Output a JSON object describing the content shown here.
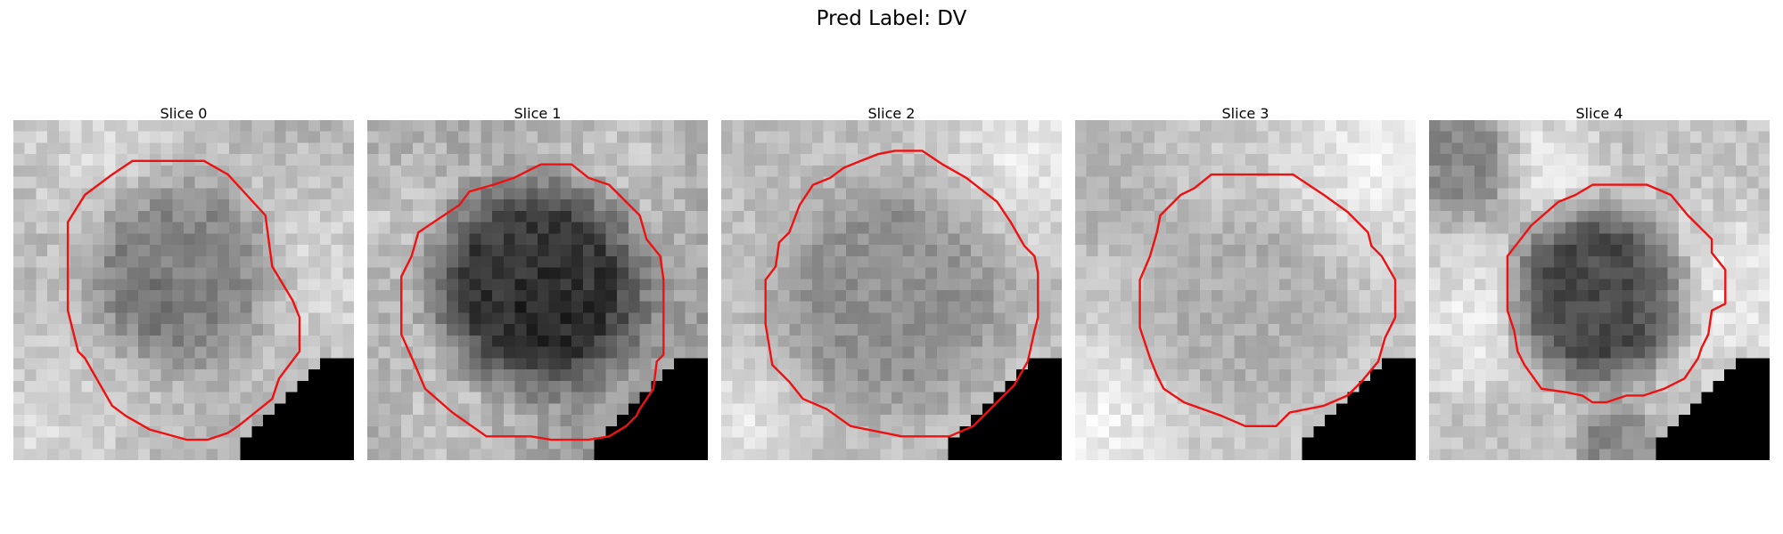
{
  "figure": {
    "title": "Pred Label: DV",
    "contour_color": "#ee1111"
  },
  "slices": [
    {
      "title": "Slice 0",
      "seed": 11,
      "base": 175,
      "contrast": 20,
      "bright_regions": [
        [
          0.25,
          0.05,
          0.5
        ],
        [
          0.05,
          0.95,
          0.6
        ],
        [
          0.9,
          0.45,
          0.5
        ]
      ],
      "dark_regions": [
        [
          0.5,
          0.45,
          0.35,
          60
        ]
      ],
      "contour": [
        [
          0.29,
          0.16
        ],
        [
          0.35,
          0.12
        ],
        [
          0.56,
          0.12
        ],
        [
          0.63,
          0.16
        ],
        [
          0.74,
          0.28
        ],
        [
          0.76,
          0.43
        ],
        [
          0.82,
          0.53
        ],
        [
          0.84,
          0.58
        ],
        [
          0.84,
          0.68
        ],
        [
          0.78,
          0.76
        ],
        [
          0.76,
          0.82
        ],
        [
          0.66,
          0.9
        ],
        [
          0.63,
          0.92
        ],
        [
          0.57,
          0.94
        ],
        [
          0.51,
          0.94
        ],
        [
          0.4,
          0.91
        ],
        [
          0.33,
          0.87
        ],
        [
          0.29,
          0.84
        ],
        [
          0.21,
          0.7
        ],
        [
          0.19,
          0.68
        ],
        [
          0.16,
          0.56
        ],
        [
          0.16,
          0.3
        ],
        [
          0.21,
          0.22
        ]
      ]
    },
    {
      "title": "Slice 1",
      "seed": 23,
      "base": 155,
      "contrast": 22,
      "bright_regions": [
        [
          0.05,
          0.3,
          0.5
        ],
        [
          0.2,
          0.9,
          0.4
        ],
        [
          0.75,
          0.1,
          0.5
        ]
      ],
      "dark_regions": [
        [
          0.5,
          0.48,
          0.38,
          115
        ]
      ],
      "contour": [
        [
          0.27,
          0.25
        ],
        [
          0.3,
          0.21
        ],
        [
          0.37,
          0.19
        ],
        [
          0.43,
          0.17
        ],
        [
          0.47,
          0.15
        ],
        [
          0.51,
          0.13
        ],
        [
          0.6,
          0.13
        ],
        [
          0.65,
          0.17
        ],
        [
          0.71,
          0.19
        ],
        [
          0.8,
          0.28
        ],
        [
          0.82,
          0.35
        ],
        [
          0.86,
          0.4
        ],
        [
          0.87,
          0.47
        ],
        [
          0.87,
          0.69
        ],
        [
          0.85,
          0.71
        ],
        [
          0.84,
          0.79
        ],
        [
          0.8,
          0.85
        ],
        [
          0.79,
          0.87
        ],
        [
          0.76,
          0.9
        ],
        [
          0.71,
          0.93
        ],
        [
          0.65,
          0.94
        ],
        [
          0.54,
          0.94
        ],
        [
          0.48,
          0.93
        ],
        [
          0.35,
          0.93
        ],
        [
          0.25,
          0.86
        ],
        [
          0.17,
          0.79
        ],
        [
          0.14,
          0.72
        ],
        [
          0.1,
          0.63
        ],
        [
          0.1,
          0.46
        ],
        [
          0.13,
          0.4
        ],
        [
          0.15,
          0.33
        ],
        [
          0.18,
          0.31
        ]
      ]
    },
    {
      "title": "Slice 2",
      "seed": 37,
      "base": 190,
      "contrast": 18,
      "bright_regions": [
        [
          0.9,
          0.1,
          0.4
        ],
        [
          0.05,
          0.9,
          0.3
        ]
      ],
      "dark_regions": [
        [
          0.5,
          0.52,
          0.43,
          45
        ]
      ],
      "contour": [
        [
          0.23,
          0.25
        ],
        [
          0.27,
          0.19
        ],
        [
          0.32,
          0.17
        ],
        [
          0.36,
          0.14
        ],
        [
          0.41,
          0.12
        ],
        [
          0.46,
          0.1
        ],
        [
          0.51,
          0.09
        ],
        [
          0.59,
          0.09
        ],
        [
          0.65,
          0.13
        ],
        [
          0.72,
          0.17
        ],
        [
          0.81,
          0.24
        ],
        [
          0.85,
          0.3
        ],
        [
          0.89,
          0.37
        ],
        [
          0.92,
          0.4
        ],
        [
          0.93,
          0.45
        ],
        [
          0.93,
          0.58
        ],
        [
          0.92,
          0.62
        ],
        [
          0.9,
          0.71
        ],
        [
          0.86,
          0.78
        ],
        [
          0.82,
          0.82
        ],
        [
          0.78,
          0.86
        ],
        [
          0.74,
          0.9
        ],
        [
          0.67,
          0.93
        ],
        [
          0.53,
          0.93
        ],
        [
          0.38,
          0.9
        ],
        [
          0.31,
          0.85
        ],
        [
          0.24,
          0.82
        ],
        [
          0.2,
          0.77
        ],
        [
          0.15,
          0.72
        ],
        [
          0.13,
          0.6
        ],
        [
          0.13,
          0.47
        ],
        [
          0.16,
          0.43
        ],
        [
          0.17,
          0.36
        ],
        [
          0.2,
          0.33
        ]
      ]
    },
    {
      "title": "Slice 3",
      "seed": 53,
      "base": 200,
      "contrast": 17,
      "bright_regions": [
        [
          0.9,
          0.1,
          0.4
        ],
        [
          0.05,
          0.9,
          0.35
        ]
      ],
      "dark_regions": [
        [
          0.5,
          0.55,
          0.38,
          25
        ],
        [
          0.1,
          0.2,
          0.25,
          20
        ]
      ],
      "contour": [
        [
          0.25,
          0.28
        ],
        [
          0.31,
          0.22
        ],
        [
          0.35,
          0.2
        ],
        [
          0.4,
          0.16
        ],
        [
          0.49,
          0.16
        ],
        [
          0.64,
          0.16
        ],
        [
          0.73,
          0.22
        ],
        [
          0.8,
          0.27
        ],
        [
          0.86,
          0.33
        ],
        [
          0.87,
          0.37
        ],
        [
          0.9,
          0.4
        ],
        [
          0.94,
          0.47
        ],
        [
          0.94,
          0.58
        ],
        [
          0.91,
          0.64
        ],
        [
          0.89,
          0.71
        ],
        [
          0.84,
          0.77
        ],
        [
          0.8,
          0.81
        ],
        [
          0.73,
          0.84
        ],
        [
          0.63,
          0.86
        ],
        [
          0.59,
          0.9
        ],
        [
          0.5,
          0.9
        ],
        [
          0.43,
          0.87
        ],
        [
          0.32,
          0.83
        ],
        [
          0.26,
          0.79
        ],
        [
          0.24,
          0.75
        ],
        [
          0.22,
          0.7
        ],
        [
          0.19,
          0.61
        ],
        [
          0.19,
          0.47
        ],
        [
          0.22,
          0.4
        ],
        [
          0.24,
          0.33
        ]
      ]
    },
    {
      "title": "Slice 4",
      "seed": 71,
      "base": 195,
      "contrast": 20,
      "bright_regions": [
        [
          0.35,
          0.12,
          0.2
        ],
        [
          0.1,
          0.6,
          0.3
        ],
        [
          0.9,
          0.5,
          0.35
        ]
      ],
      "dark_regions": [
        [
          0.5,
          0.52,
          0.32,
          120
        ],
        [
          0.08,
          0.12,
          0.22,
          55
        ],
        [
          0.55,
          0.95,
          0.15,
          55
        ]
      ],
      "contour": [
        [
          0.3,
          0.31
        ],
        [
          0.38,
          0.24
        ],
        [
          0.43,
          0.22
        ],
        [
          0.48,
          0.19
        ],
        [
          0.56,
          0.19
        ],
        [
          0.64,
          0.19
        ],
        [
          0.71,
          0.22
        ],
        [
          0.76,
          0.28
        ],
        [
          0.79,
          0.31
        ],
        [
          0.83,
          0.35
        ],
        [
          0.83,
          0.39
        ],
        [
          0.87,
          0.44
        ],
        [
          0.87,
          0.54
        ],
        [
          0.83,
          0.56
        ],
        [
          0.82,
          0.63
        ],
        [
          0.8,
          0.67
        ],
        [
          0.79,
          0.7
        ],
        [
          0.75,
          0.76
        ],
        [
          0.69,
          0.79
        ],
        [
          0.63,
          0.81
        ],
        [
          0.58,
          0.81
        ],
        [
          0.52,
          0.83
        ],
        [
          0.48,
          0.83
        ],
        [
          0.45,
          0.81
        ],
        [
          0.4,
          0.8
        ],
        [
          0.33,
          0.79
        ],
        [
          0.28,
          0.72
        ],
        [
          0.26,
          0.68
        ],
        [
          0.25,
          0.62
        ],
        [
          0.23,
          0.56
        ],
        [
          0.23,
          0.4
        ]
      ]
    }
  ]
}
